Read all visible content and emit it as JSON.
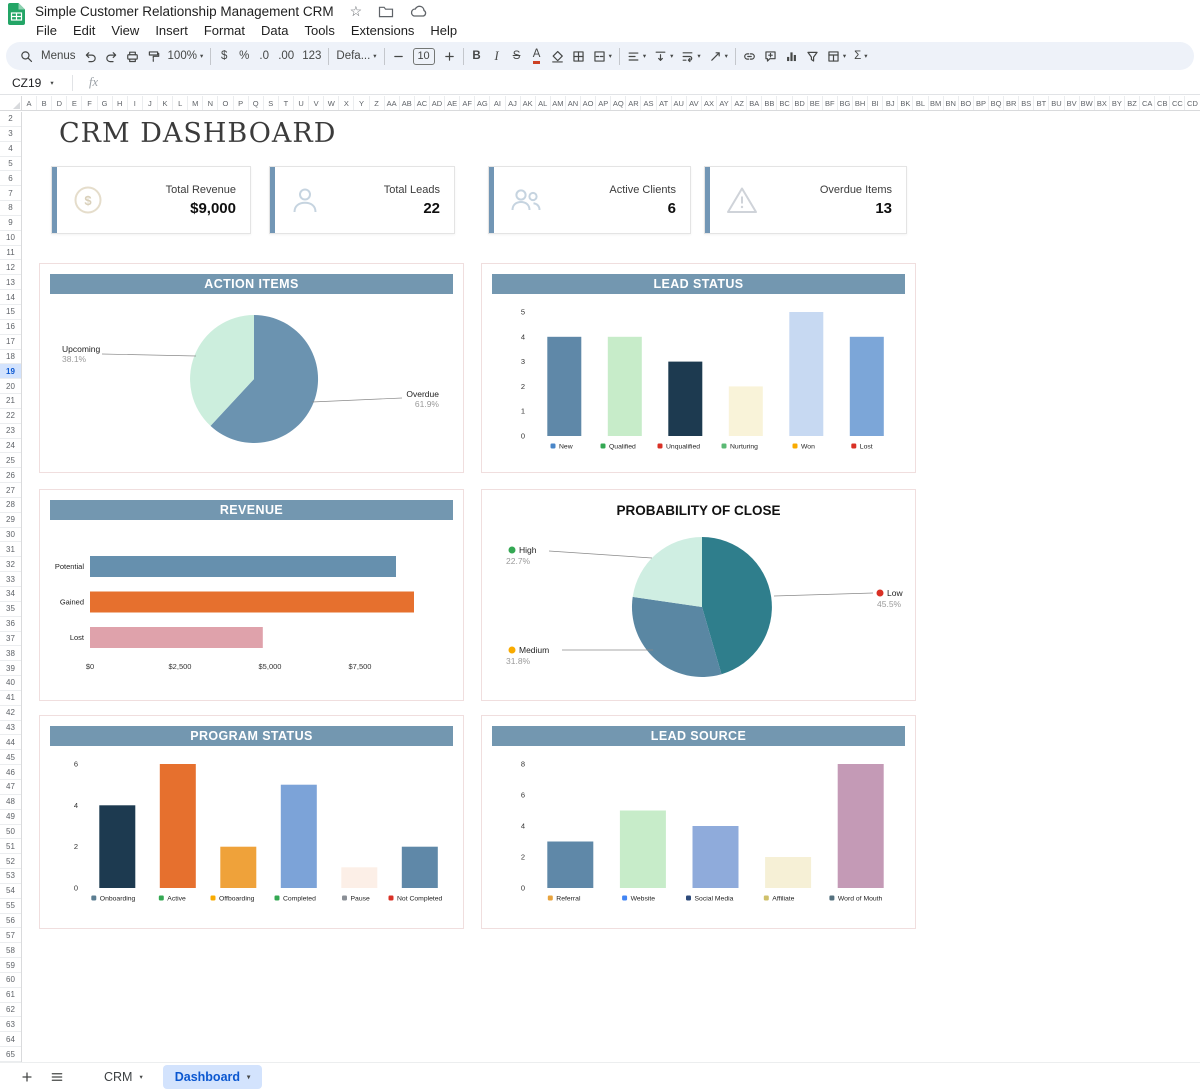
{
  "titlebar": {
    "title": "Simple Customer Relationship Management CRM"
  },
  "menubar": {
    "items": [
      "File",
      "Edit",
      "View",
      "Insert",
      "Format",
      "Data",
      "Tools",
      "Extensions",
      "Help"
    ]
  },
  "toolbar": {
    "items": [
      {
        "t": "icon",
        "name": "search-icon",
        "icon": "search"
      },
      {
        "t": "text",
        "name": "menus-button",
        "label": "Menus"
      },
      {
        "t": "icon",
        "name": "undo-icon",
        "icon": "undo"
      },
      {
        "t": "icon",
        "name": "redo-icon",
        "icon": "redo"
      },
      {
        "t": "icon",
        "name": "print-icon",
        "icon": "print"
      },
      {
        "t": "icon",
        "name": "paint-format-icon",
        "icon": "paint"
      },
      {
        "t": "text",
        "name": "zoom-select",
        "label": "100%",
        "caret": true
      },
      {
        "t": "div"
      },
      {
        "t": "text",
        "name": "format-currency-button",
        "label": "$"
      },
      {
        "t": "text",
        "name": "format-percent-button",
        "label": "%"
      },
      {
        "t": "text",
        "name": "decrease-decimal-button",
        "label": ".0"
      },
      {
        "t": "text",
        "name": "increase-decimal-button",
        "label": ".00"
      },
      {
        "t": "text",
        "name": "number-format-button",
        "label": "123"
      },
      {
        "t": "div"
      },
      {
        "t": "text",
        "name": "font-select",
        "label": "Defa...",
        "caret": true
      },
      {
        "t": "div"
      },
      {
        "t": "icon",
        "name": "decrease-font-size-button",
        "icon": "minus"
      },
      {
        "t": "box",
        "name": "font-size-input",
        "label": "10"
      },
      {
        "t": "icon",
        "name": "increase-font-size-button",
        "icon": "plus"
      },
      {
        "t": "div"
      },
      {
        "t": "text",
        "name": "bold-button",
        "label": "B",
        "cls": "b"
      },
      {
        "t": "text",
        "name": "italic-button",
        "label": "I",
        "cls": "i"
      },
      {
        "t": "text",
        "name": "strikethrough-button",
        "label": "S",
        "cls": "s"
      },
      {
        "t": "text",
        "name": "text-color-button",
        "label": "A",
        "cls": "u"
      },
      {
        "t": "icon",
        "name": "fill-color-icon",
        "icon": "fill"
      },
      {
        "t": "icon",
        "name": "borders-icon",
        "icon": "borders"
      },
      {
        "t": "icon",
        "name": "merge-cells-icon",
        "icon": "merge",
        "caret": true
      },
      {
        "t": "div"
      },
      {
        "t": "icon",
        "name": "horizontal-align-icon",
        "icon": "align_l",
        "caret": true
      },
      {
        "t": "icon",
        "name": "vertical-align-icon",
        "icon": "valign",
        "caret": true
      },
      {
        "t": "icon",
        "name": "text-wrap-icon",
        "icon": "wrap",
        "caret": true
      },
      {
        "t": "icon",
        "name": "text-rotation-icon",
        "icon": "rotate",
        "caret": true
      },
      {
        "t": "div"
      },
      {
        "t": "icon",
        "name": "insert-link-icon",
        "icon": "link"
      },
      {
        "t": "icon",
        "name": "insert-comment-icon",
        "icon": "comment"
      },
      {
        "t": "icon",
        "name": "insert-chart-icon",
        "icon": "chart"
      },
      {
        "t": "icon",
        "name": "create-filter-icon",
        "icon": "filter"
      },
      {
        "t": "icon",
        "name": "table-icon",
        "icon": "table",
        "caret": true
      },
      {
        "t": "text",
        "name": "functions-button",
        "label": "Σ",
        "caret": true
      }
    ]
  },
  "formula_bar": {
    "cell_ref": "CZ19",
    "fx_label": "fx"
  },
  "grid": {
    "columns": [
      "A",
      "B",
      "D",
      "E",
      "F",
      "G",
      "H",
      "I",
      "J",
      "K",
      "L",
      "M",
      "N",
      "O",
      "P",
      "Q",
      "S",
      "T",
      "U",
      "V",
      "W",
      "X",
      "Y",
      "Z",
      "AA",
      "AB",
      "AC",
      "AD",
      "AE",
      "AF",
      "AG",
      "AI",
      "AJ",
      "AK",
      "AL",
      "AM",
      "AN",
      "AO",
      "AP",
      "AQ",
      "AR",
      "AS",
      "AT",
      "AU",
      "AV",
      "AX",
      "AY",
      "AZ",
      "BA",
      "BB",
      "BC",
      "BD",
      "BE",
      "BF",
      "BG",
      "BH",
      "BI",
      "BJ",
      "BK",
      "BL",
      "BM",
      "BN",
      "BO",
      "BP",
      "BQ",
      "BR",
      "BS",
      "BT",
      "BU",
      "BV",
      "BW",
      "BX",
      "BY",
      "BZ",
      "CA",
      "CB",
      "CC",
      "CD"
    ],
    "rows": [
      2,
      3,
      4,
      5,
      6,
      7,
      8,
      9,
      10,
      11,
      12,
      13,
      14,
      15,
      16,
      17,
      18,
      19,
      20,
      21,
      22,
      23,
      24,
      25,
      26,
      27,
      28,
      29,
      30,
      31,
      32,
      33,
      34,
      35,
      36,
      37,
      38,
      39,
      40,
      41,
      42,
      43,
      44,
      45,
      46,
      47,
      48,
      49,
      50,
      51,
      52,
      53,
      54,
      55,
      56,
      57,
      58,
      59,
      60,
      61,
      62,
      63,
      64,
      65
    ],
    "highlight_row": 19
  },
  "dashboard": {
    "title": "CRM DASHBOARD",
    "kpis": [
      {
        "label": "Total Revenue",
        "value": "$9,000",
        "icon": "dollar-icon"
      },
      {
        "label": "Total Leads",
        "value": "22",
        "icon": "person-icon"
      },
      {
        "label": "Active Clients",
        "value": "6",
        "icon": "people-icon"
      },
      {
        "label": "Overdue Items",
        "value": "13",
        "icon": "warning-icon"
      }
    ]
  },
  "chart_data": [
    {
      "id": "action_items",
      "type": "pie",
      "title": "ACTION ITEMS",
      "slices": [
        {
          "label": "Overdue",
          "value": 61.9,
          "pct_label": "61.9%",
          "color": "#6b93b0"
        },
        {
          "label": "Upcoming",
          "value": 38.1,
          "pct_label": "38.1%",
          "color": "#cceedd"
        }
      ]
    },
    {
      "id": "lead_status",
      "type": "bar",
      "title": "LEAD STATUS",
      "ymax": 5,
      "yticks": [
        0,
        1,
        2,
        3,
        4,
        5
      ],
      "categories": [
        "New",
        "Qualified",
        "Unqualified",
        "Nurturing",
        "Won",
        "Lost"
      ],
      "values": [
        4,
        4,
        3,
        2,
        5,
        4
      ],
      "colors": [
        "#5f88a8",
        "#c7ecc9",
        "#1d3a50",
        "#f9f3d9",
        "#c7d9f2",
        "#7ca6d8"
      ],
      "icon_colors": [
        "#4a86c8",
        "#34a853",
        "#d93025",
        "#5bb974",
        "#f9ab00",
        "#d93025"
      ]
    },
    {
      "id": "revenue",
      "type": "hbar",
      "title": "REVENUE",
      "xmax": 9400,
      "categories": [
        "Potential",
        "Gained",
        "Lost"
      ],
      "values": [
        8500,
        9000,
        4800
      ],
      "colors": [
        "#6690ae",
        "#e6702e",
        "#dfa2ab"
      ],
      "xticks": [
        {
          "v": 0,
          "label": "$0"
        },
        {
          "v": 2500,
          "label": "$2,500"
        },
        {
          "v": 5000,
          "label": "$5,000"
        },
        {
          "v": 7500,
          "label": "$7,500"
        }
      ]
    },
    {
      "id": "probability_of_close",
      "type": "pie",
      "title": "PROBABILITY OF CLOSE",
      "slices": [
        {
          "label": "Low",
          "value": 45.5,
          "pct_label": "45.5%",
          "color": "#2f7e8c",
          "dot": "#d93025"
        },
        {
          "label": "Medium",
          "value": 31.8,
          "pct_label": "31.8%",
          "color": "#5a87a3",
          "dot": "#f9ab00"
        },
        {
          "label": "High",
          "value": 22.7,
          "pct_label": "22.7%",
          "color": "#cfeee2",
          "dot": "#34a853"
        }
      ]
    },
    {
      "id": "program_status",
      "type": "bar",
      "title": "PROGRAM STATUS",
      "ymax": 6,
      "yticks": [
        0,
        2,
        4,
        6
      ],
      "categories": [
        "Onboarding",
        "Active",
        "Offboarding",
        "Completed",
        "Pause",
        "Not Completed"
      ],
      "values": [
        4,
        6,
        2,
        5,
        1,
        2
      ],
      "colors": [
        "#1d3a50",
        "#e6702e",
        "#efa23a",
        "#7ca3d8",
        "#fcefe7",
        "#5f88a8"
      ],
      "icon_colors": [
        "#5b7d91",
        "#34a853",
        "#f9ab00",
        "#34a853",
        "#8a8f96",
        "#d93025"
      ]
    },
    {
      "id": "lead_source",
      "type": "bar",
      "title": "LEAD SOURCE",
      "ymax": 8,
      "yticks": [
        0,
        2,
        4,
        6,
        8
      ],
      "categories": [
        "Referral",
        "Website",
        "Social Media",
        "Affiliate",
        "Word of Mouth"
      ],
      "values": [
        3,
        5,
        4,
        2,
        8
      ],
      "colors": [
        "#5f88a8",
        "#c7ecc9",
        "#8fabdb",
        "#f6f0d6",
        "#c49ab6"
      ],
      "icon_colors": [
        "#e8a33d",
        "#4285f4",
        "#2d4a7a",
        "#cfc06a",
        "#54707e"
      ]
    }
  ],
  "sheet_bar": {
    "tabs": [
      {
        "label": "CRM",
        "active": false
      },
      {
        "label": "Dashboard",
        "active": true
      }
    ]
  }
}
